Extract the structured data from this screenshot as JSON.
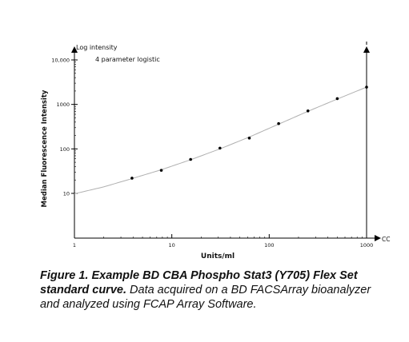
{
  "chart_data": {
    "type": "scatter",
    "title": "",
    "annotation": "4 parameter logistic",
    "xlabel": "Units/ml",
    "ylabel": "Median Fluorescence Intensity",
    "y_axis_top_label": "Log intensity",
    "x_axis_end_label": "CC",
    "x_scale": "log",
    "y_scale": "log",
    "xlim": [
      1,
      1000
    ],
    "ylim": [
      10,
      10000
    ],
    "x_ticks": [
      1,
      10,
      100,
      1000
    ],
    "x_tick_labels": [
      "1",
      "10",
      "100",
      "1000"
    ],
    "y_ticks": [
      10,
      100,
      1000,
      10000
    ],
    "y_tick_labels": [
      "10",
      "100",
      "1000",
      "10,000"
    ],
    "grid": false,
    "series": [
      {
        "x": [
          3.9,
          7.8,
          15.6,
          31.2,
          62.5,
          125,
          250,
          500,
          1000
        ],
        "y": [
          22,
          33,
          58,
          104,
          175,
          370,
          715,
          1350,
          2450
        ]
      }
    ],
    "fit_curve": {
      "x": [
        1,
        2,
        3.9,
        7.8,
        15.6,
        31.2,
        62.5,
        125,
        250,
        500,
        1000
      ],
      "y": [
        9.8,
        14,
        21.5,
        34,
        57,
        100,
        185,
        360,
        700,
        1320,
        2450
      ]
    },
    "colors": {
      "points": "#000000",
      "curve": "#b0b0b0",
      "axes": "#000000"
    }
  },
  "caption": {
    "bold": "Figure 1. Example BD CBA Phospho Stat3 (Y705) Flex Set standard curve.",
    "rest": " Data acquired on a BD FACSArray bioanalyzer and analyzed using FCAP Array Software."
  }
}
